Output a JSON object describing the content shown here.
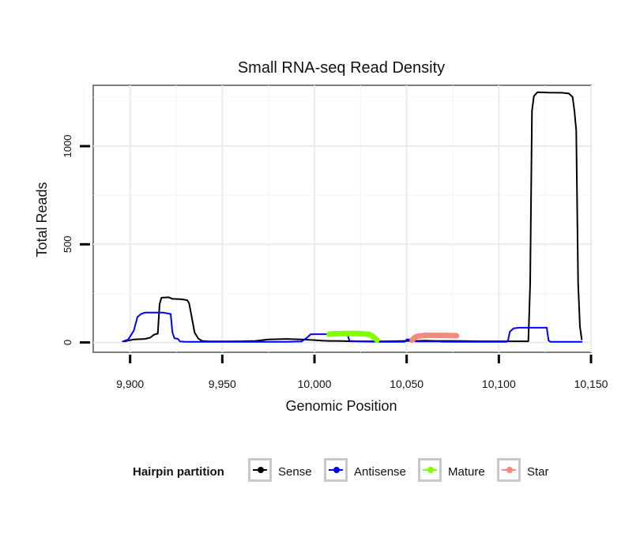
{
  "chart_data": {
    "type": "line",
    "title": "Small RNA-seq Read Density",
    "xlabel": "Genomic Position",
    "ylabel": "Total Reads",
    "xlim": [
      9880,
      10150
    ],
    "ylim": [
      -50,
      1310
    ],
    "x_ticks": [
      9900,
      9950,
      10000,
      10050,
      10100,
      10150
    ],
    "x_tick_labels": [
      "9,900",
      "9,950",
      "10,000",
      "10,050",
      "10,100",
      "10,150"
    ],
    "y_ticks": [
      0,
      500,
      1000
    ],
    "y_tick_labels": [
      "0",
      "500",
      "1000"
    ],
    "grid": true,
    "legend": {
      "title": "Hairpin partition",
      "position": "bottom",
      "entries": [
        "Sense",
        "Antisense",
        "Mature",
        "Star"
      ]
    },
    "series": [
      {
        "name": "Sense",
        "color": "#000000",
        "points": [
          [
            9897,
            5
          ],
          [
            9899,
            10
          ],
          [
            9902,
            15
          ],
          [
            9908,
            18
          ],
          [
            9911,
            25
          ],
          [
            9913,
            40
          ],
          [
            9915,
            45
          ],
          [
            9916,
            195
          ],
          [
            9917,
            228
          ],
          [
            9921,
            230
          ],
          [
            9923,
            222
          ],
          [
            9928,
            220
          ],
          [
            9931,
            215
          ],
          [
            9932,
            200
          ],
          [
            9933,
            150
          ],
          [
            9935,
            50
          ],
          [
            9937,
            20
          ],
          [
            9939,
            8
          ],
          [
            9943,
            5
          ],
          [
            9950,
            5
          ],
          [
            9960,
            6
          ],
          [
            9968,
            8
          ],
          [
            9975,
            15
          ],
          [
            9985,
            18
          ],
          [
            9993,
            15
          ],
          [
            10000,
            12
          ],
          [
            10004,
            9
          ],
          [
            10008,
            8
          ],
          [
            10010,
            8
          ],
          [
            10015,
            7
          ],
          [
            10020,
            6
          ],
          [
            10030,
            6
          ],
          [
            10040,
            6
          ],
          [
            10050,
            8
          ],
          [
            10055,
            8
          ],
          [
            10060,
            9
          ],
          [
            10065,
            8
          ],
          [
            10080,
            7
          ],
          [
            10090,
            6
          ],
          [
            10100,
            6
          ],
          [
            10110,
            6
          ],
          [
            10116,
            6
          ],
          [
            10117,
            300
          ],
          [
            10118,
            1180
          ],
          [
            10119,
            1255
          ],
          [
            10121,
            1275
          ],
          [
            10127,
            1273
          ],
          [
            10134,
            1272
          ],
          [
            10138,
            1268
          ],
          [
            10140,
            1250
          ],
          [
            10141,
            1180
          ],
          [
            10142,
            1080
          ],
          [
            10143,
            300
          ],
          [
            10144,
            80
          ],
          [
            10145,
            15
          ]
        ]
      },
      {
        "name": "Antisense",
        "color": "#0000ff",
        "points": [
          [
            9896,
            5
          ],
          [
            9899,
            15
          ],
          [
            9902,
            60
          ],
          [
            9904,
            130
          ],
          [
            9906,
            145
          ],
          [
            9908,
            152
          ],
          [
            9912,
            152
          ],
          [
            9918,
            152
          ],
          [
            9922,
            145
          ],
          [
            9923,
            50
          ],
          [
            9924,
            22
          ],
          [
            9926,
            18
          ],
          [
            9927,
            5
          ],
          [
            9930,
            3
          ],
          [
            9940,
            3
          ],
          [
            9955,
            3
          ],
          [
            9970,
            3
          ],
          [
            9985,
            3
          ],
          [
            9993,
            5
          ],
          [
            9996,
            25
          ],
          [
            9998,
            42
          ],
          [
            10000,
            42
          ],
          [
            10008,
            42
          ],
          [
            10010,
            40
          ],
          [
            10018,
            38
          ],
          [
            10019,
            8
          ],
          [
            10025,
            5
          ],
          [
            10035,
            3
          ],
          [
            10045,
            3
          ],
          [
            10049,
            4
          ],
          [
            10050,
            15
          ],
          [
            10054,
            15
          ],
          [
            10055,
            5
          ],
          [
            10060,
            5
          ],
          [
            10068,
            5
          ],
          [
            10069,
            4
          ],
          [
            10080,
            3
          ],
          [
            10090,
            3
          ],
          [
            10100,
            3
          ],
          [
            10104,
            3
          ],
          [
            10105,
            10
          ],
          [
            10106,
            55
          ],
          [
            10108,
            72
          ],
          [
            10111,
            75
          ],
          [
            10116,
            75
          ],
          [
            10123,
            75
          ],
          [
            10126,
            75
          ],
          [
            10127,
            10
          ],
          [
            10128,
            3
          ],
          [
            10135,
            3
          ],
          [
            10145,
            3
          ]
        ]
      },
      {
        "name": "Mature",
        "color": "#7fff00",
        "points": [
          [
            10008,
            42
          ],
          [
            10010,
            44
          ],
          [
            10015,
            45
          ],
          [
            10020,
            46
          ],
          [
            10025,
            45
          ],
          [
            10028,
            43
          ],
          [
            10030,
            40
          ],
          [
            10031,
            35
          ],
          [
            10032,
            28
          ],
          [
            10033,
            20
          ],
          [
            10034,
            12
          ]
        ]
      },
      {
        "name": "Star",
        "color": "#f28b7c",
        "points": [
          [
            10053,
            12
          ],
          [
            10054,
            22
          ],
          [
            10055,
            28
          ],
          [
            10056,
            32
          ],
          [
            10058,
            34
          ],
          [
            10060,
            36
          ],
          [
            10065,
            36
          ],
          [
            10070,
            36
          ],
          [
            10074,
            35
          ],
          [
            10076,
            35
          ],
          [
            10077,
            34
          ]
        ]
      }
    ]
  }
}
